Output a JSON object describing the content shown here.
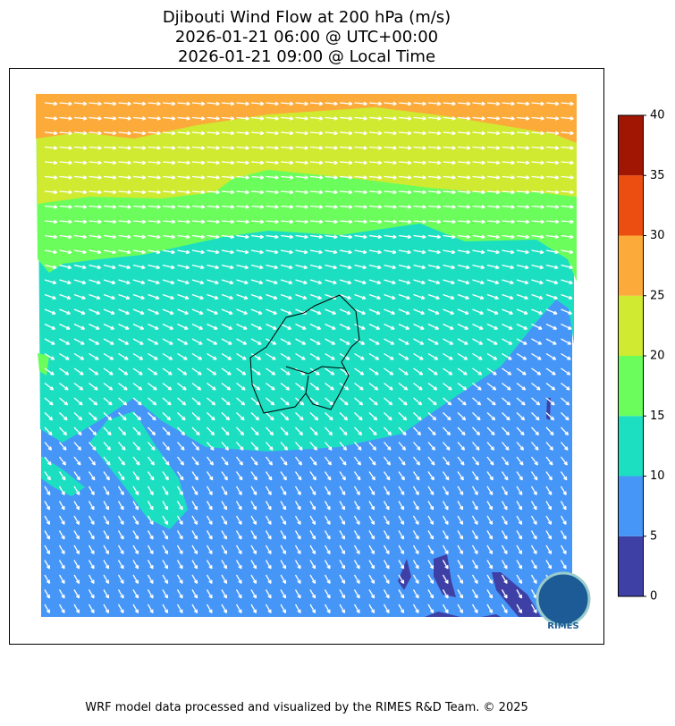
{
  "title": [
    "Djibouti Wind Flow at 200 hPa (m/s)",
    "2026-01-21 06:00 @ UTC+00:00",
    "2026-01-21 09:00 @ Local Time"
  ],
  "colorbar": {
    "ticks": [
      0,
      5,
      10,
      15,
      20,
      25,
      30,
      35,
      40
    ],
    "colors": [
      "#3f40a6",
      "#4696f8",
      "#1cdfc2",
      "#6bfd5c",
      "#cfea30",
      "#fcab3a",
      "#ec4e12",
      "#a01602"
    ]
  },
  "logo": "RIMES",
  "footer": "WRF model data processed and visualized by the RIMES R&D Team. © 2025"
}
